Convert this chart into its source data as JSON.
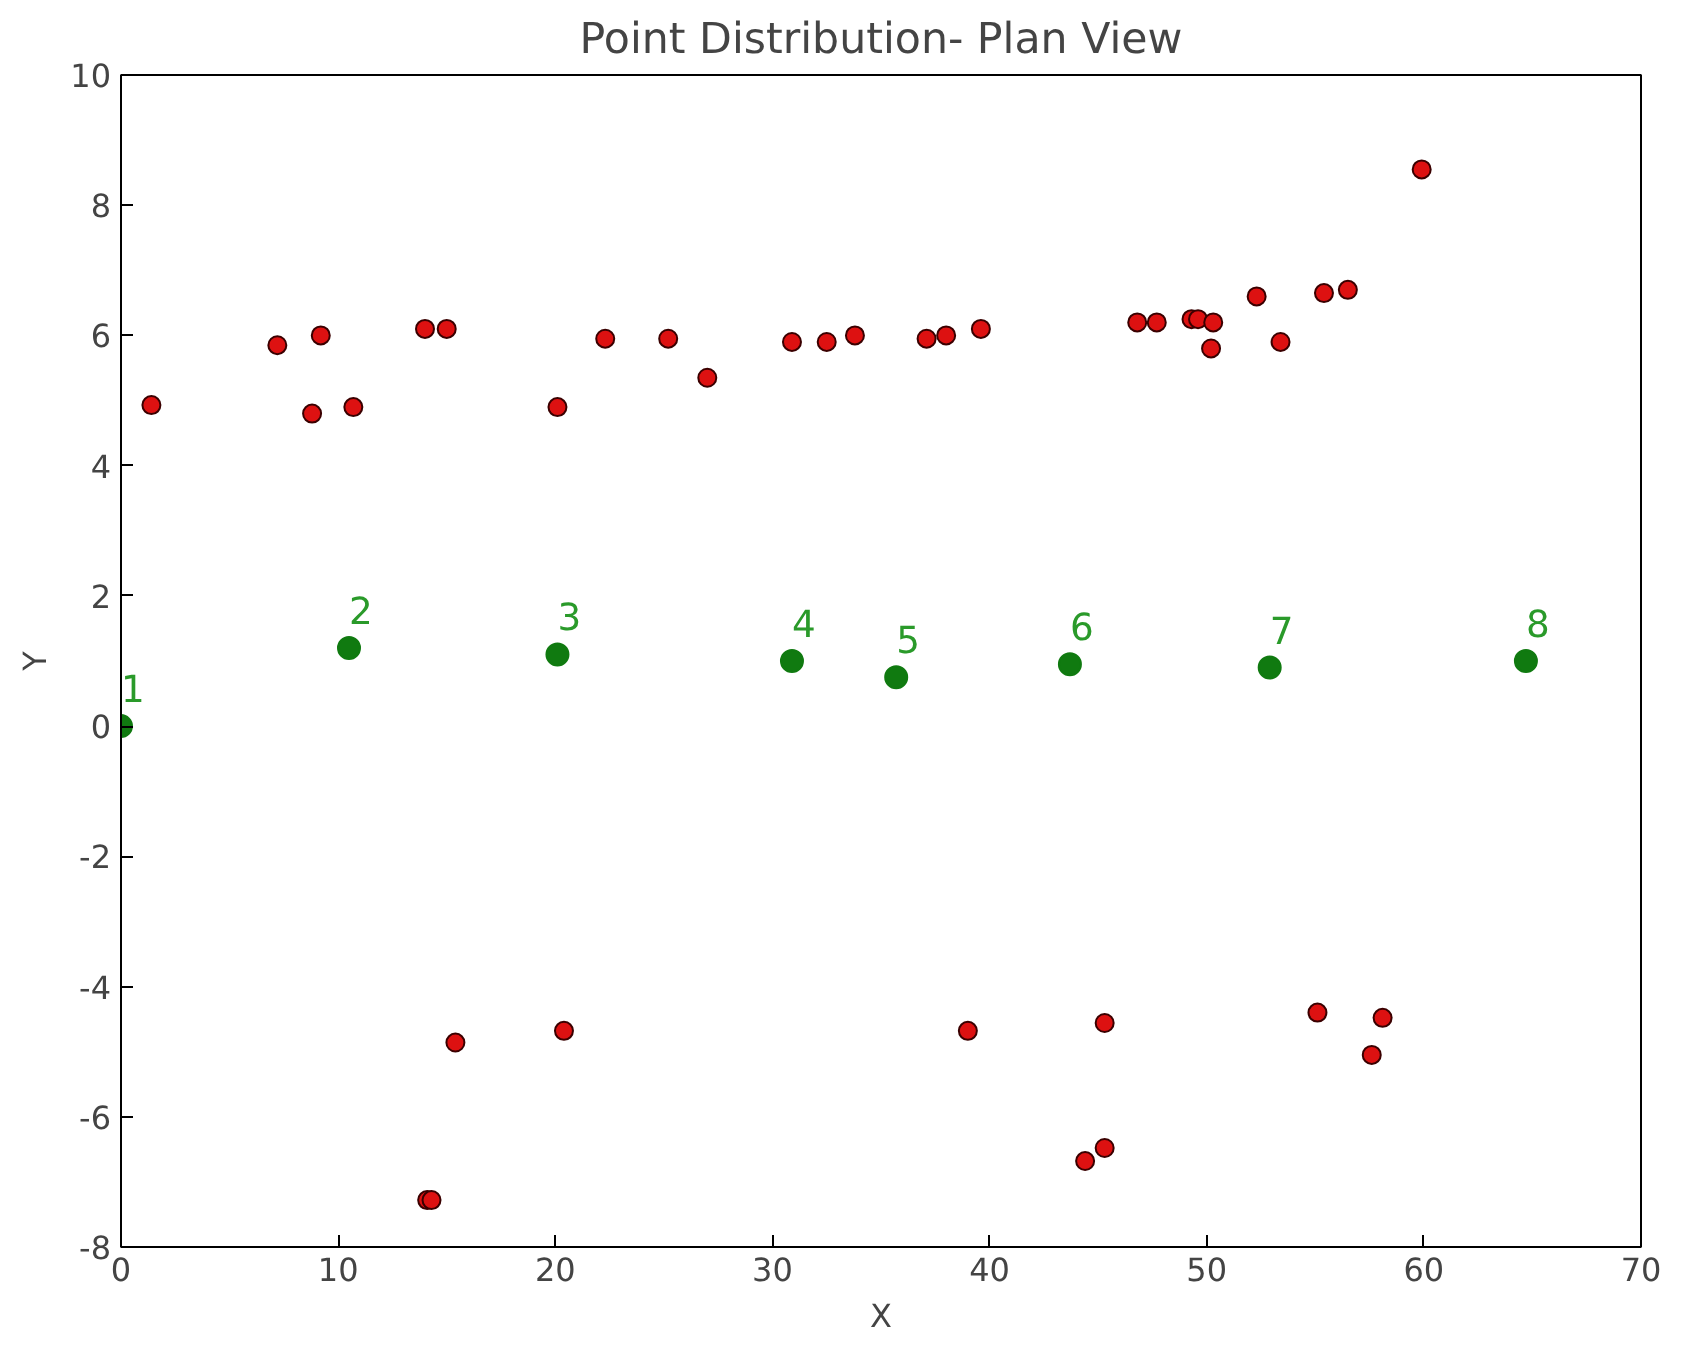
{
  "chart_data": {
    "type": "scatter",
    "title": "Point Distribution- Plan View",
    "xlabel": "X",
    "ylabel": "Y",
    "xlim": [
      0,
      70
    ],
    "ylim": [
      -8,
      10
    ],
    "xticks": [
      0,
      10,
      20,
      30,
      40,
      50,
      60,
      70
    ],
    "yticks": [
      -8,
      -6,
      -4,
      -2,
      0,
      2,
      4,
      6,
      8,
      10
    ],
    "grid": false,
    "marker": "circle",
    "series": [
      {
        "color": "#dd1111",
        "x": [
          1.4,
          7.2,
          9.2,
          8.8,
          10.7,
          14.0,
          15.0,
          20.1,
          22.3,
          25.2,
          27.0,
          30.9,
          32.5,
          33.8,
          37.1,
          38.0,
          39.6,
          46.8,
          47.7,
          49.3,
          49.6,
          50.3,
          50.2,
          52.3,
          53.4,
          55.4,
          56.5,
          59.9,
          14.1,
          14.3,
          15.4,
          20.4,
          39.0,
          45.3,
          44.4,
          45.3,
          55.1,
          58.1,
          57.6
        ],
        "values": [
          4.93,
          5.85,
          6.0,
          4.8,
          4.9,
          6.1,
          6.1,
          4.9,
          5.95,
          5.95,
          5.35,
          5.9,
          5.9,
          6.0,
          5.95,
          6.0,
          6.1,
          6.2,
          6.2,
          6.25,
          6.25,
          6.2,
          5.8,
          6.6,
          5.9,
          6.65,
          6.7,
          8.55,
          -7.28,
          -7.28,
          -4.86,
          -4.68,
          -4.68,
          -4.56,
          -6.68,
          -6.48,
          -4.4,
          -4.48,
          -5.05
        ]
      },
      {
        "color": "#107a10",
        "x": [
          0,
          10.5,
          20.1,
          30.9,
          35.7,
          43.7,
          52.9,
          64.7
        ],
        "values": [
          0,
          1.2,
          1.1,
          1.0,
          0.75,
          0.95,
          0.9,
          1.0
        ]
      }
    ],
    "annotations": [
      {
        "text": "1",
        "x": 0,
        "y": 0
      },
      {
        "text": "2",
        "x": 10.5,
        "y": 1.2
      },
      {
        "text": "3",
        "x": 20.1,
        "y": 1.1
      },
      {
        "text": "4",
        "x": 30.9,
        "y": 1.0
      },
      {
        "text": "5",
        "x": 35.7,
        "y": 0.75
      },
      {
        "text": "6",
        "x": 43.7,
        "y": 0.95
      },
      {
        "text": "7",
        "x": 52.9,
        "y": 0.9
      },
      {
        "text": "8",
        "x": 64.7,
        "y": 1.0
      }
    ]
  }
}
